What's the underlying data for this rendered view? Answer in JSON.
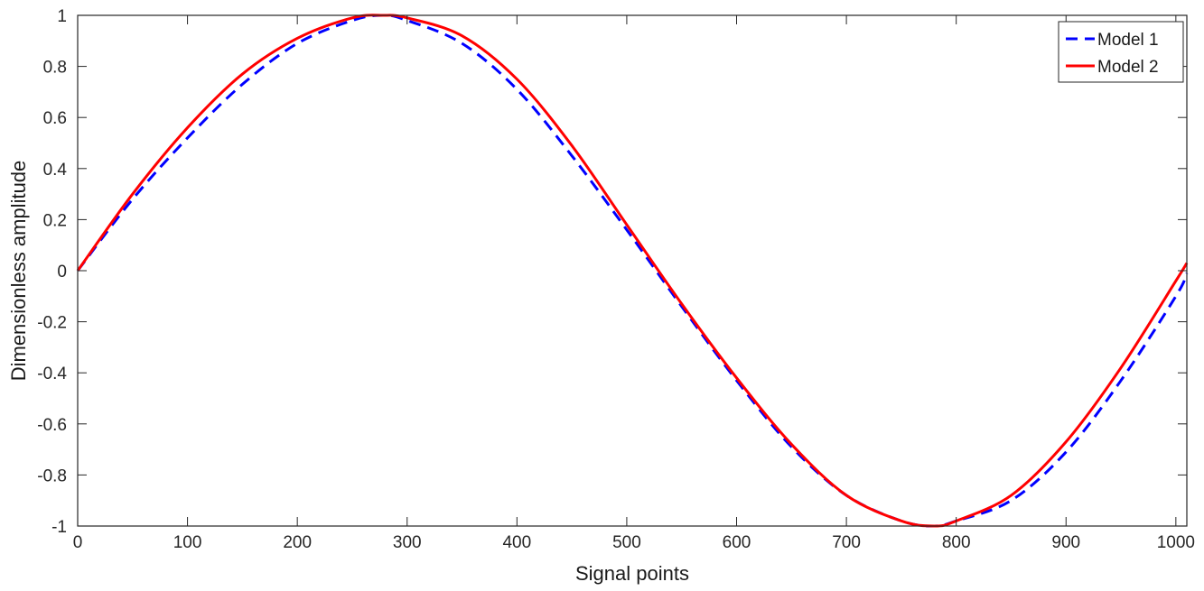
{
  "chart_data": {
    "type": "line",
    "xlabel": "Signal points",
    "ylabel": "Dimensionless amplitude",
    "xlim": [
      0,
      1010
    ],
    "ylim": [
      -1,
      1
    ],
    "xticks": [
      0,
      100,
      200,
      300,
      400,
      500,
      600,
      700,
      800,
      900,
      1000
    ],
    "xtick_labels": [
      "0",
      "100",
      "200",
      "300",
      "400",
      "500",
      "600",
      "700",
      "800",
      "900",
      "1000"
    ],
    "yticks": [
      -1,
      -0.8,
      -0.6,
      -0.4,
      -0.2,
      0,
      0.2,
      0.4,
      0.6,
      0.8,
      1
    ],
    "ytick_labels": [
      "-1",
      "-0.8",
      "-0.6",
      "-0.4",
      "-0.2",
      "0",
      "0.2",
      "0.4",
      "0.6",
      "0.8",
      "1"
    ],
    "grid": false,
    "legend_position": "top-right",
    "series": [
      {
        "name": "Model 1",
        "color": "#0000ff",
        "style": "dashed",
        "x": [
          0,
          50,
          100,
          150,
          200,
          250,
          278,
          300,
          350,
          400,
          450,
          500,
          550,
          600,
          650,
          700,
          750,
          780,
          800,
          850,
          900,
          950,
          1000,
          1010
        ],
        "y": [
          0,
          0.28,
          0.52,
          0.73,
          0.89,
          0.98,
          1.0,
          0.98,
          0.89,
          0.71,
          0.45,
          0.16,
          -0.14,
          -0.43,
          -0.69,
          -0.88,
          -0.98,
          -1.0,
          -0.98,
          -0.9,
          -0.71,
          -0.43,
          -0.1,
          -0.01
        ]
      },
      {
        "name": "Model 2",
        "color": "#ff0000",
        "style": "solid",
        "x": [
          0,
          50,
          100,
          150,
          200,
          250,
          278,
          300,
          350,
          400,
          450,
          500,
          550,
          600,
          650,
          700,
          750,
          780,
          800,
          850,
          900,
          950,
          1000,
          1010
        ],
        "y": [
          0,
          0.3,
          0.56,
          0.77,
          0.91,
          0.99,
          1.0,
          0.99,
          0.92,
          0.75,
          0.49,
          0.18,
          -0.13,
          -0.42,
          -0.68,
          -0.88,
          -0.98,
          -1.0,
          -0.98,
          -0.88,
          -0.67,
          -0.38,
          -0.04,
          0.03
        ]
      }
    ]
  }
}
